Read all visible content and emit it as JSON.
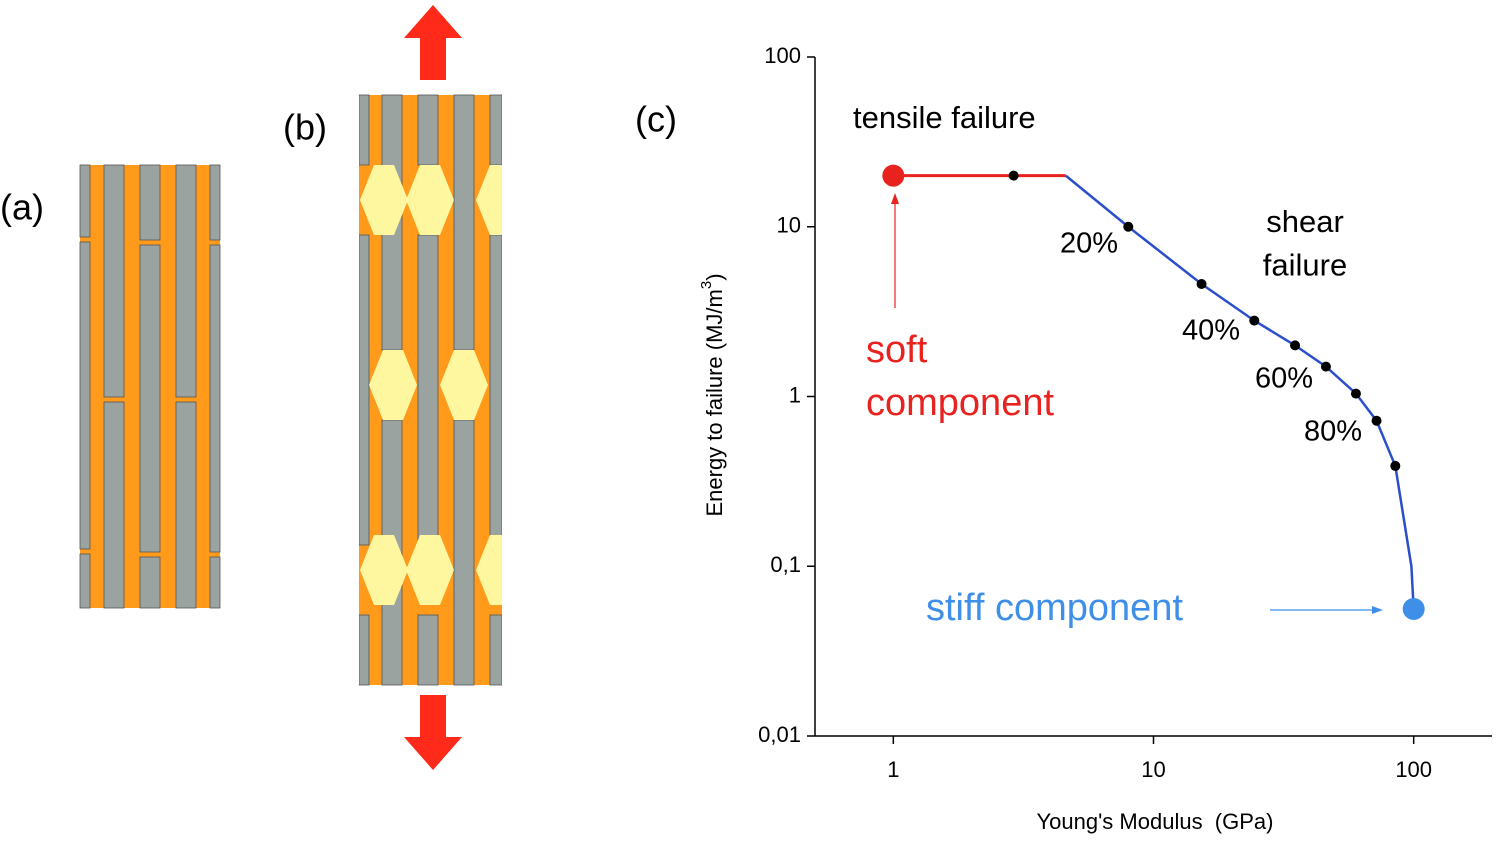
{
  "panels": [
    "(a)",
    "(b)",
    "(c)"
  ],
  "chart_data": {
    "type": "line",
    "x_label": "Young's Modulus  (GPa)",
    "y_label": [
      "Energy to failure (MJ/m",
      "3",
      ")"
    ],
    "log_x": true,
    "log_y": true,
    "xlim": [
      0.5,
      200
    ],
    "ylim": [
      0.01,
      100
    ],
    "xticks": [
      1,
      10,
      100
    ],
    "yticks": [
      {
        "value": 0.01,
        "label": "0,01"
      },
      {
        "value": 0.1,
        "label": "0,1"
      },
      1,
      10,
      100
    ],
    "series": [
      {
        "color": "#e8231f",
        "x": [
          1,
          4.6
        ],
        "values": [
          20,
          20
        ]
      },
      {
        "color": "#2b4fc9",
        "x": [
          4.6,
          8,
          15.3,
          24.4,
          35,
          46,
          60,
          72,
          85,
          98,
          100
        ],
        "values": [
          20,
          10,
          4.6,
          2.8,
          2.0,
          1.5,
          1.04,
          0.72,
          0.39,
          0.1,
          0.056
        ]
      }
    ],
    "points": {
      "color": "#000000",
      "x": [
        2.9,
        8,
        15.3,
        24.4,
        35,
        46,
        60,
        72,
        85
      ],
      "values": [
        20,
        10,
        4.6,
        2.8,
        2.0,
        1.5,
        1.04,
        0.72,
        0.39
      ]
    },
    "endpoints": [
      {
        "color": "#e8231f",
        "x": 1,
        "value": 20
      },
      {
        "color": "#3f8ee8",
        "x": 100,
        "value": 0.056
      }
    ],
    "annotations": [
      {
        "text": [
          "tensile failure"
        ],
        "color": "#000000"
      },
      {
        "text": [
          "shear",
          "failure"
        ],
        "color": "#000000"
      },
      {
        "text": [
          "20%"
        ],
        "color": "#000000"
      },
      {
        "text": [
          "40%"
        ],
        "color": "#000000"
      },
      {
        "text": [
          "60%"
        ],
        "color": "#000000"
      },
      {
        "text": [
          "80%"
        ],
        "color": "#000000"
      },
      {
        "text": [
          "soft",
          "component"
        ],
        "color": "#e8231f"
      },
      {
        "text": [
          "stiff component"
        ],
        "color": "#3f8ee8"
      }
    ]
  }
}
